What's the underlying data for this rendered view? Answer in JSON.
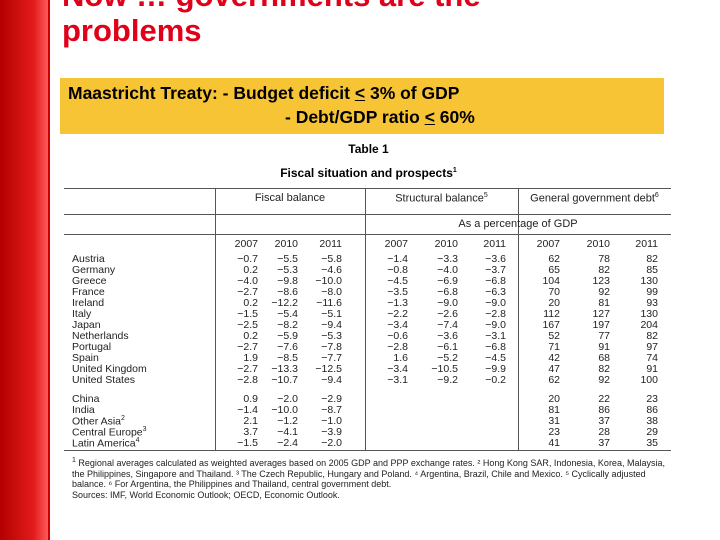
{
  "slide": {
    "title_line1": "Now … governments are the",
    "title_line2": "problems",
    "treaty_prefix": "Maastricht Treaty: - Budget deficit ",
    "treaty_le1": "<",
    "treaty_suffix1": " 3% of GDP",
    "treaty_line2_prefix": "- Debt/GDP ratio ",
    "treaty_le2": "<",
    "treaty_suffix2": " 60%"
  },
  "table": {
    "name": "Table 1",
    "caption": "Fiscal situation and prospects",
    "groups": [
      "Fiscal balance",
      "Structural balance",
      "General government debt"
    ],
    "group_notes": [
      "",
      "5",
      "6"
    ],
    "unit": "As a percentage of GDP",
    "years": [
      "2007",
      "2010",
      "2011"
    ],
    "rows": [
      {
        "country": "Austria",
        "sup": "",
        "v": [
          "−0.7",
          "−5.5",
          "−5.8",
          "−1.4",
          "−3.3",
          "−3.6",
          "62",
          "78",
          "82"
        ]
      },
      {
        "country": "Germany",
        "sup": "",
        "v": [
          "0.2",
          "−5.3",
          "−4.6",
          "−0.8",
          "−4.0",
          "−3.7",
          "65",
          "82",
          "85"
        ]
      },
      {
        "country": "Greece",
        "sup": "",
        "v": [
          "−4.0",
          "−9.8",
          "−10.0",
          "−4.5",
          "−6.9",
          "−6.8",
          "104",
          "123",
          "130"
        ]
      },
      {
        "country": "France",
        "sup": "",
        "v": [
          "−2.7",
          "−8.6",
          "−8.0",
          "−3.5",
          "−6.8",
          "−6.3",
          "70",
          "92",
          "99"
        ]
      },
      {
        "country": "Ireland",
        "sup": "",
        "v": [
          "0.2",
          "−12.2",
          "−11.6",
          "−1.3",
          "−9.0",
          "−9.0",
          "20",
          "81",
          "93"
        ]
      },
      {
        "country": "Italy",
        "sup": "",
        "v": [
          "−1.5",
          "−5.4",
          "−5.1",
          "−2.2",
          "−2.6",
          "−2.8",
          "112",
          "127",
          "130"
        ]
      },
      {
        "country": "Japan",
        "sup": "",
        "v": [
          "−2.5",
          "−8.2",
          "−9.4",
          "−3.4",
          "−7.4",
          "−9.0",
          "167",
          "197",
          "204"
        ]
      },
      {
        "country": "Netherlands",
        "sup": "",
        "v": [
          "0.2",
          "−5.9",
          "−5.3",
          "−0.6",
          "−3.6",
          "−3.1",
          "52",
          "77",
          "82"
        ]
      },
      {
        "country": "Portugal",
        "sup": "",
        "v": [
          "−2.7",
          "−7.6",
          "−7.8",
          "−2.8",
          "−6.1",
          "−6.8",
          "71",
          "91",
          "97"
        ]
      },
      {
        "country": "Spain",
        "sup": "",
        "v": [
          "1.9",
          "−8.5",
          "−7.7",
          "1.6",
          "−5.2",
          "−4.5",
          "42",
          "68",
          "74"
        ]
      },
      {
        "country": "United Kingdom",
        "sup": "",
        "v": [
          "−2.7",
          "−13.3",
          "−12.5",
          "−3.4",
          "−10.5",
          "−9.9",
          "47",
          "82",
          "91"
        ]
      },
      {
        "country": "United States",
        "sup": "",
        "v": [
          "−2.8",
          "−10.7",
          "−9.4",
          "−3.1",
          "−9.2",
          "−0.2",
          "62",
          "92",
          "100"
        ]
      },
      {
        "country": "China",
        "sup": "",
        "v": [
          "0.9",
          "−2.0",
          "−2.9",
          "",
          "",
          "",
          "20",
          "22",
          "23"
        ]
      },
      {
        "country": "India",
        "sup": "",
        "v": [
          "−1.4",
          "−10.0",
          "−8.7",
          "",
          "",
          "",
          "81",
          "86",
          "86"
        ]
      },
      {
        "country": "Other Asia",
        "sup": "2",
        "v": [
          "2.1",
          "−1.2",
          "−1.0",
          "",
          "",
          "",
          "31",
          "37",
          "38"
        ]
      },
      {
        "country": "Central Europe",
        "sup": "3",
        "v": [
          "3.7",
          "−4.1",
          "−3.9",
          "",
          "",
          "",
          "23",
          "28",
          "29"
        ]
      },
      {
        "country": "Latin America",
        "sup": "4",
        "v": [
          "−1.5",
          "−2.4",
          "−2.0",
          "",
          "",
          "",
          "41",
          "37",
          "35"
        ]
      }
    ],
    "notes": [
      "Regional averages calculated as weighted averages based on 2005 GDP and PPP exchange rates. ² Hong Kong SAR, Indonesia, Korea, Malaysia, the Philippines, Singapore and Thailand. ³ The Czech Republic, Hungary and Poland. ⁴ Argentina, Brazil, Chile and Mexico. ⁵ Cyclically adjusted balance. ⁶ For Argentina, the Philippines and Thailand, central government debt."
    ],
    "note_first_mark": "1",
    "sources": "Sources: IMF, World Economic Outlook; OECD, Economic Outlook."
  }
}
